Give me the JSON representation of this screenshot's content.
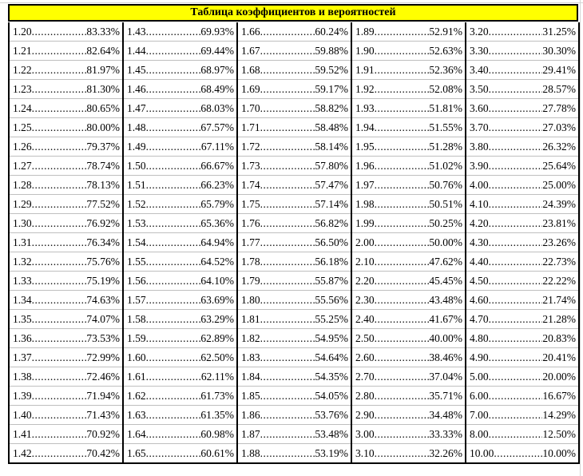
{
  "title": "Таблица коэффициентов и вероятностей",
  "columns": [
    {
      "rows": [
        {
          "c": "1.20",
          "p": "83.33%"
        },
        {
          "c": "1.21",
          "p": "82.64%"
        },
        {
          "c": "1.22",
          "p": "81.97%"
        },
        {
          "c": "1.23",
          "p": "81.30%"
        },
        {
          "c": "1.24",
          "p": "80.65%"
        },
        {
          "c": "1.25",
          "p": "80.00%"
        },
        {
          "c": "1.26",
          "p": "79.37%"
        },
        {
          "c": "1.27",
          "p": "78.74%"
        },
        {
          "c": "1.28",
          "p": "78.13%"
        },
        {
          "c": "1.29",
          "p": "77.52%"
        },
        {
          "c": "1.30",
          "p": "76.92%"
        },
        {
          "c": "1.31",
          "p": "76.34%"
        },
        {
          "c": "1.32",
          "p": "75.76%"
        },
        {
          "c": "1.33",
          "p": "75.19%"
        },
        {
          "c": "1.34",
          "p": "74.63%"
        },
        {
          "c": "1.35",
          "p": "74.07%"
        },
        {
          "c": "1.36",
          "p": "73.53%"
        },
        {
          "c": "1.37",
          "p": "72.99%"
        },
        {
          "c": "1.38",
          "p": "72.46%"
        },
        {
          "c": "1.39",
          "p": "71.94%"
        },
        {
          "c": "1.40",
          "p": "71.43%"
        },
        {
          "c": "1.41",
          "p": "70.92%"
        },
        {
          "c": "1.42",
          "p": "70.42%"
        }
      ]
    },
    {
      "rows": [
        {
          "c": "1.43",
          "p": "69.93%"
        },
        {
          "c": "1.44",
          "p": "69.44%"
        },
        {
          "c": "1.45",
          "p": "68.97%"
        },
        {
          "c": "1.46",
          "p": "68.49%"
        },
        {
          "c": "1.47",
          "p": "68.03%"
        },
        {
          "c": "1.48",
          "p": "67.57%"
        },
        {
          "c": "1.49",
          "p": "67.11%"
        },
        {
          "c": "1.50",
          "p": "66.67%"
        },
        {
          "c": "1.51",
          "p": "66.23%"
        },
        {
          "c": "1.52",
          "p": "65.79%"
        },
        {
          "c": "1.53",
          "p": "65.36%"
        },
        {
          "c": "1.54",
          "p": "64.94%"
        },
        {
          "c": "1.55",
          "p": "64.52%"
        },
        {
          "c": "1.56",
          "p": "64.10%"
        },
        {
          "c": "1.57",
          "p": "63.69%"
        },
        {
          "c": "1.58",
          "p": "63.29%"
        },
        {
          "c": "1.59",
          "p": "62.89%"
        },
        {
          "c": "1.60",
          "p": "62.50%"
        },
        {
          "c": "1.61",
          "p": "62.11%"
        },
        {
          "c": "1.62",
          "p": "61.73%"
        },
        {
          "c": "1.63",
          "p": "61.35%"
        },
        {
          "c": "1.64",
          "p": "60.98%"
        },
        {
          "c": "1.65",
          "p": "60.61%"
        }
      ]
    },
    {
      "rows": [
        {
          "c": "1.66",
          "p": "60.24%"
        },
        {
          "c": "1.67",
          "p": "59.88%"
        },
        {
          "c": "1.68",
          "p": "59.52%"
        },
        {
          "c": "1.69",
          "p": "59.17%"
        },
        {
          "c": "1.70",
          "p": "58.82%"
        },
        {
          "c": "1.71",
          "p": "58.48%"
        },
        {
          "c": "1.72",
          "p": "58.14%"
        },
        {
          "c": "1.73",
          "p": "57.80%"
        },
        {
          "c": "1.74",
          "p": "57.47%"
        },
        {
          "c": "1.75",
          "p": "57.14%"
        },
        {
          "c": "1.76",
          "p": "56.82%"
        },
        {
          "c": "1.77",
          "p": "56.50%"
        },
        {
          "c": "1.78",
          "p": "56.18%"
        },
        {
          "c": "1.79",
          "p": "55.87%"
        },
        {
          "c": "1.80",
          "p": "55.56%"
        },
        {
          "c": "1.81",
          "p": "55.25%"
        },
        {
          "c": "1.82",
          "p": "54.95%"
        },
        {
          "c": "1.83",
          "p": "54.64%"
        },
        {
          "c": "1.84",
          "p": "54.35%"
        },
        {
          "c": "1.85",
          "p": "54.05%"
        },
        {
          "c": "1.86",
          "p": "53.76%"
        },
        {
          "c": "1.87",
          "p": "53.48%"
        },
        {
          "c": "1.88",
          "p": "53.19%"
        }
      ]
    },
    {
      "rows": [
        {
          "c": "1.89",
          "p": "52.91%"
        },
        {
          "c": "1.90",
          "p": "52.63%"
        },
        {
          "c": "1.91",
          "p": "52.36%"
        },
        {
          "c": "1.92",
          "p": "52.08%"
        },
        {
          "c": "1.93",
          "p": "51.81%"
        },
        {
          "c": "1.94",
          "p": "51.55%"
        },
        {
          "c": "1.95",
          "p": "51.28%"
        },
        {
          "c": "1.96",
          "p": "51.02%"
        },
        {
          "c": "1.97",
          "p": "50.76%"
        },
        {
          "c": "1.98",
          "p": "50.51%"
        },
        {
          "c": "1.99",
          "p": "50.25%"
        },
        {
          "c": "2.00",
          "p": "50.00%"
        },
        {
          "c": "2.10",
          "p": "47.62%"
        },
        {
          "c": "2.20",
          "p": "45.45%"
        },
        {
          "c": "2.30",
          "p": "43.48%"
        },
        {
          "c": "2.40",
          "p": "41.67%"
        },
        {
          "c": "2.50",
          "p": "40.00%"
        },
        {
          "c": "2.60",
          "p": "38.46%"
        },
        {
          "c": "2.70",
          "p": "37.04%"
        },
        {
          "c": "2.80",
          "p": "35.71%"
        },
        {
          "c": "2.90",
          "p": "34.48%"
        },
        {
          "c": "3.00",
          "p": "33.33%"
        },
        {
          "c": "3.10",
          "p": "32.26%"
        }
      ]
    },
    {
      "rows": [
        {
          "c": "3.20",
          "p": "31.25%"
        },
        {
          "c": "3.30",
          "p": "30.30%"
        },
        {
          "c": "3.40",
          "p": "29.41%"
        },
        {
          "c": "3.50",
          "p": "28.57%"
        },
        {
          "c": "3.60",
          "p": "27.78%"
        },
        {
          "c": "3.70",
          "p": "27.03%"
        },
        {
          "c": "3.80",
          "p": "26.32%"
        },
        {
          "c": "3.90",
          "p": "25.64%"
        },
        {
          "c": "4.00",
          "p": "25.00%"
        },
        {
          "c": "4.10",
          "p": "24.39%"
        },
        {
          "c": "4.20",
          "p": "23.81%"
        },
        {
          "c": "4.30",
          "p": "23.26%"
        },
        {
          "c": "4.40",
          "p": "22.73%"
        },
        {
          "c": "4.50",
          "p": "22.22%"
        },
        {
          "c": "4.60",
          "p": "21.74%"
        },
        {
          "c": "4.70",
          "p": "21.28%"
        },
        {
          "c": "4.80",
          "p": "20.83%"
        },
        {
          "c": "4.90",
          "p": "20.41%"
        },
        {
          "c": "5.00",
          "p": "20.00%"
        },
        {
          "c": "6.00",
          "p": "16.67%"
        },
        {
          "c": "7.00",
          "p": "14.29%"
        },
        {
          "c": "8.00",
          "p": "12.50%"
        },
        {
          "c": "10.00",
          "p": "10.00%"
        }
      ]
    }
  ]
}
